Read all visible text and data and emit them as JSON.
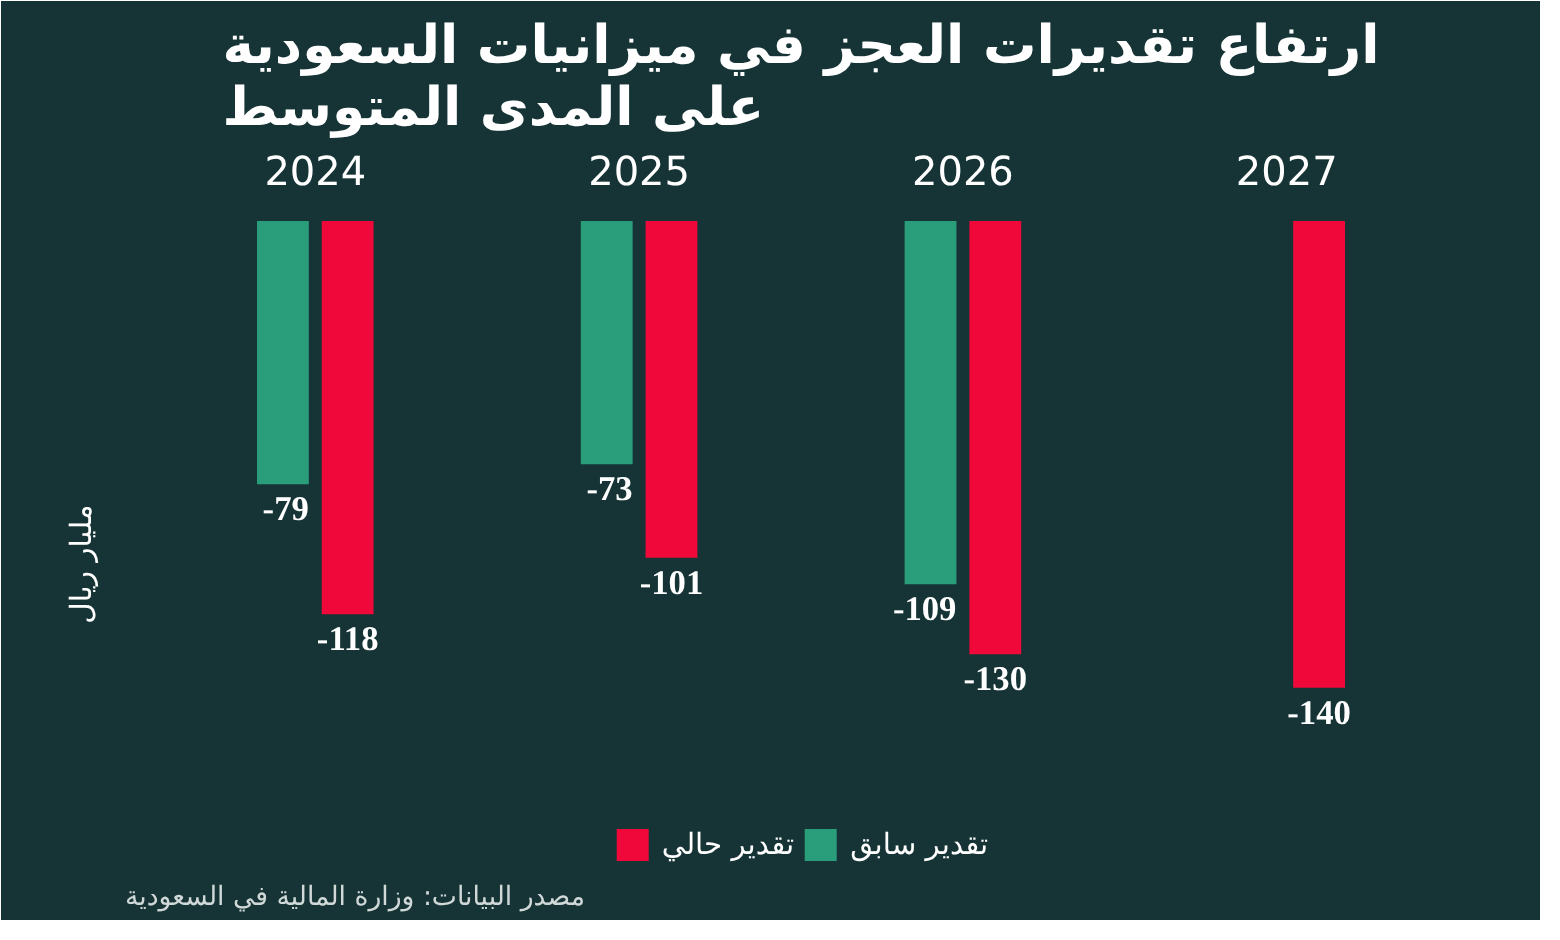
{
  "chart_data": {
    "type": "bar",
    "title": "ارتفاع تقديرات العجز في ميزانيات السعودية\nعلى المدى المتوسط",
    "ylabel": "مليار ريال",
    "categories": [
      "2024",
      "2025",
      "2026",
      "2027"
    ],
    "series": [
      {
        "name": "تقدير سابق",
        "color": "#2a9d7a",
        "values": [
          -79,
          -73,
          -109,
          null
        ]
      },
      {
        "name": "تقدير حالي",
        "color": "#f0083a",
        "values": [
          -118,
          -101,
          -130,
          -140
        ]
      }
    ],
    "data_labels": true,
    "legend": "bottom",
    "grid": false,
    "annotations": [
      "مصدر البيانات: وزارة المالية في السعودية"
    ]
  }
}
